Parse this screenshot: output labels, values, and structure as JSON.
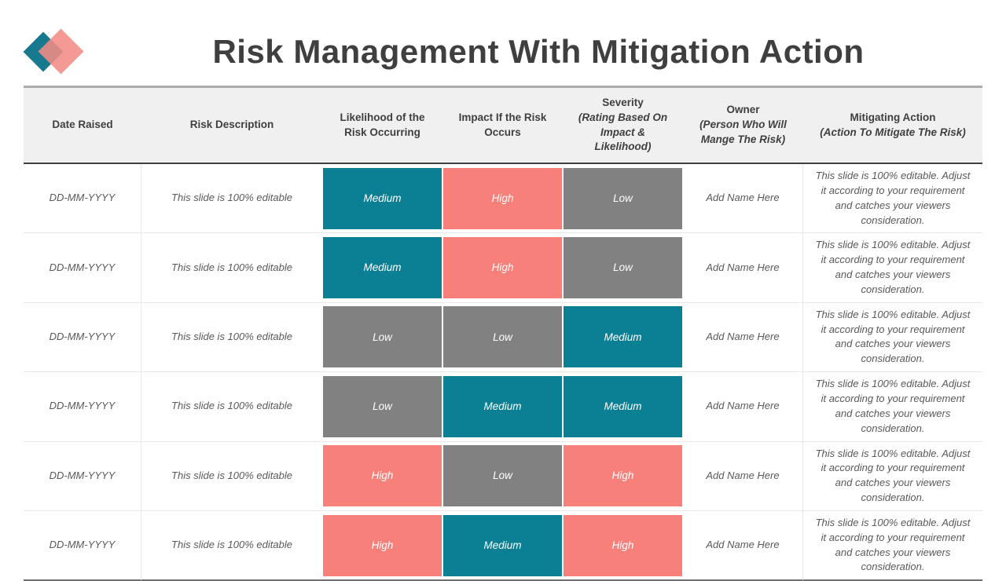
{
  "page": {
    "title": "Risk Management With Mitigation Action"
  },
  "logo": {
    "teal_color": "#16798D",
    "salmon_color": "#F28B85"
  },
  "level_colors": {
    "low": "#818181",
    "medium": "#0B7F93",
    "high": "#F8807A"
  },
  "table": {
    "columns": [
      {
        "key": "date",
        "label": "Date Raised",
        "sub": ""
      },
      {
        "key": "description",
        "label": "Risk Description",
        "sub": ""
      },
      {
        "key": "likelihood",
        "label": "Likelihood of the Risk Occurring",
        "sub": ""
      },
      {
        "key": "impact",
        "label": "Impact If the Risk Occurs",
        "sub": ""
      },
      {
        "key": "severity",
        "label": "Severity",
        "sub": "(Rating Based On Impact & Likelihood)"
      },
      {
        "key": "owner",
        "label": "Owner",
        "sub": "(Person Who Will Mange The Risk)"
      },
      {
        "key": "action",
        "label": "Mitigating Action",
        "sub": "(Action To Mitigate The Risk)"
      }
    ],
    "rows": [
      {
        "date": "DD-MM-YYYY",
        "description": "This slide is 100% editable",
        "likelihood": {
          "label": "Medium",
          "level": "medium"
        },
        "impact": {
          "label": "High",
          "level": "high"
        },
        "severity": {
          "label": "Low",
          "level": "low"
        },
        "owner": "Add Name Here",
        "action": "This slide is 100% editable. Adjust it according to your requirement and catches your viewers consideration."
      },
      {
        "date": "DD-MM-YYYY",
        "description": "This slide is 100% editable",
        "likelihood": {
          "label": "Medium",
          "level": "medium"
        },
        "impact": {
          "label": "High",
          "level": "high"
        },
        "severity": {
          "label": "Low",
          "level": "low"
        },
        "owner": "Add Name Here",
        "action": "This slide is 100% editable. Adjust it according to your requirement and catches your viewers consideration."
      },
      {
        "date": "DD-MM-YYYY",
        "description": "This slide is 100% editable",
        "likelihood": {
          "label": "Low",
          "level": "low"
        },
        "impact": {
          "label": "Low",
          "level": "low"
        },
        "severity": {
          "label": "Medium",
          "level": "medium"
        },
        "owner": "Add Name Here",
        "action": "This slide is 100% editable. Adjust it according to your requirement and catches your viewers consideration."
      },
      {
        "date": "DD-MM-YYYY",
        "description": "This slide is 100% editable",
        "likelihood": {
          "label": "Low",
          "level": "low"
        },
        "impact": {
          "label": "Medium",
          "level": "medium"
        },
        "severity": {
          "label": "Medium",
          "level": "medium"
        },
        "owner": "Add Name Here",
        "action": "This slide is 100% editable. Adjust it according to your requirement and catches your viewers consideration."
      },
      {
        "date": "DD-MM-YYYY",
        "description": "This slide is 100% editable",
        "likelihood": {
          "label": "High",
          "level": "high"
        },
        "impact": {
          "label": "Low",
          "level": "low"
        },
        "severity": {
          "label": "High",
          "level": "high"
        },
        "owner": "Add Name Here",
        "action": "This slide is 100% editable. Adjust it according to your requirement and catches your viewers consideration."
      },
      {
        "date": "DD-MM-YYYY",
        "description": "This slide is 100% editable",
        "likelihood": {
          "label": "High",
          "level": "high"
        },
        "impact": {
          "label": "Medium",
          "level": "medium"
        },
        "severity": {
          "label": "High",
          "level": "high"
        },
        "owner": "Add Name Here",
        "action": "This slide is 100% editable. Adjust it according to your requirement and catches your viewers consideration."
      }
    ]
  }
}
